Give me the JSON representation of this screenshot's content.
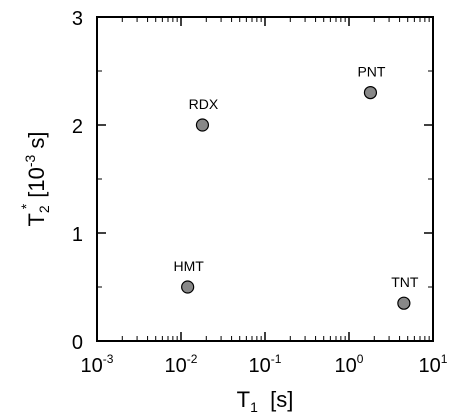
{
  "chart_data": {
    "type": "scatter",
    "x_scale": "log",
    "xlim": [
      0.001,
      10
    ],
    "ylim": [
      0,
      3
    ],
    "grid": false,
    "xlabel": {
      "main": "T",
      "sub": "1",
      "rest": "  [s]"
    },
    "ylabel": {
      "main": "T",
      "sub": "2",
      "sup": "*",
      "rest": " [10",
      "exp": "-3",
      "tail": " s]"
    },
    "x_ticks": [
      {
        "base": "10",
        "exp": "-3"
      },
      {
        "base": "10",
        "exp": "-2"
      },
      {
        "base": "10",
        "exp": "-1"
      },
      {
        "base": "10",
        "exp": "0"
      },
      {
        "base": "10",
        "exp": "1"
      }
    ],
    "y_ticks": [
      "0",
      "1",
      "2",
      "3"
    ],
    "points": [
      {
        "label": "RDX",
        "x": 0.018,
        "y": 2.0
      },
      {
        "label": "PNT",
        "x": 1.8,
        "y": 2.3
      },
      {
        "label": "HMT",
        "x": 0.012,
        "y": 0.5
      },
      {
        "label": "TNT",
        "x": 4.5,
        "y": 0.35
      }
    ],
    "marker_color": "#888888"
  }
}
